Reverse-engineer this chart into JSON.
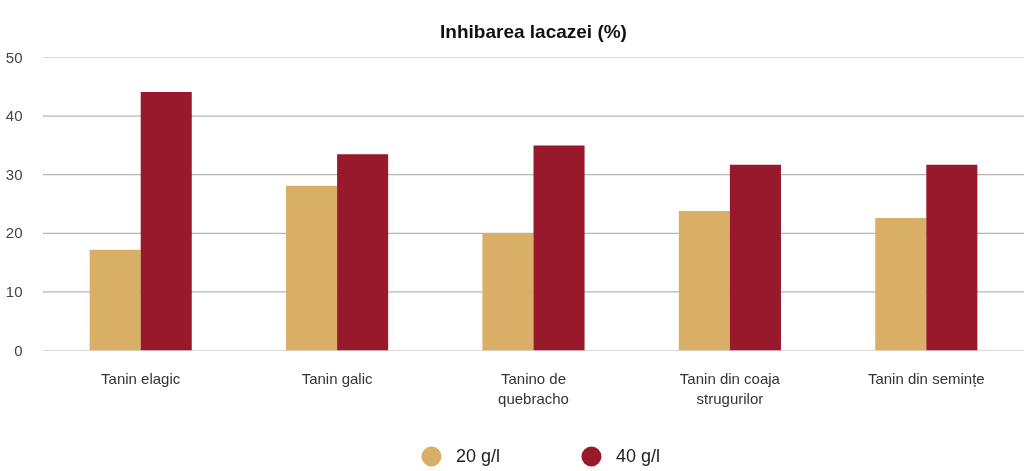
{
  "chart_data": {
    "type": "bar",
    "title": "Inhibarea lacazei (%)",
    "categories": [
      "Tanin elagic",
      "Tanin galic",
      "Tanino de quebracho",
      "Tanin din coaja strugurilor",
      "Tanin din semințe"
    ],
    "series": [
      {
        "name": "20 g/l",
        "color": "#d9ae66",
        "values": [
          17.2,
          28.1,
          20.0,
          23.8,
          22.6
        ]
      },
      {
        "name": "40 g/l",
        "color": "#98182c",
        "values": [
          44.1,
          33.5,
          35.0,
          31.7,
          31.7
        ]
      }
    ],
    "ylim": [
      0,
      50
    ],
    "yticks": [
      0,
      10,
      20,
      30,
      40,
      50
    ],
    "grid": "y",
    "legend": "bottom"
  }
}
